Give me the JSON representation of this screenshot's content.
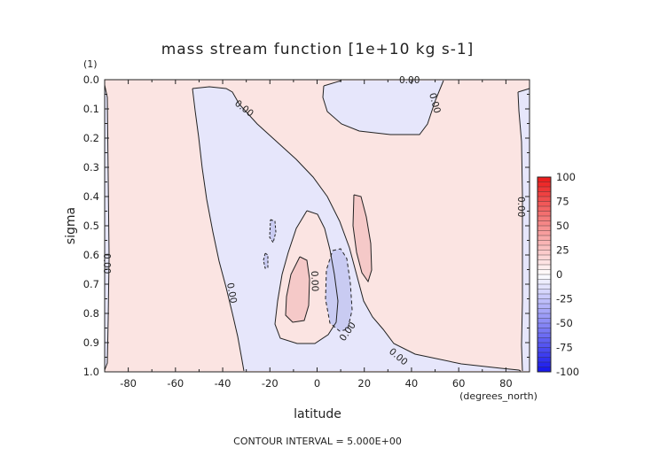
{
  "chart_data": {
    "type": "contour",
    "title": "mass stream function [1e+10 kg s-1]",
    "xlabel": "latitude",
    "ylabel": "sigma",
    "y_units": "(1)",
    "x_units": "(degrees_north)",
    "xlim": [
      -90,
      90
    ],
    "ylim": [
      1.0,
      0.0
    ],
    "x_ticks": [
      "-80",
      "-60",
      "-40",
      "-20",
      "0",
      "20",
      "40",
      "60",
      "80"
    ],
    "y_ticks": [
      "0.0",
      "0.1",
      "0.2",
      "0.3",
      "0.4",
      "0.5",
      "0.6",
      "0.7",
      "0.8",
      "0.9",
      "1.0"
    ],
    "colorbar_ticks": [
      "100",
      "75",
      "50",
      "25",
      "0",
      "-25",
      "-50",
      "-75",
      "-100"
    ],
    "colorbar_range": [
      -100,
      100
    ],
    "colormap": "blue-white-red",
    "contour_interval_text": "CONTOUR INTERVAL = 5.000E+00",
    "contour_label": "0.00",
    "colors": {
      "positive": "#fbe4e2",
      "negative": "#e6e6fb",
      "strong_positive": "#f5c9c8",
      "strong_negative": "#c9cbf2"
    }
  }
}
